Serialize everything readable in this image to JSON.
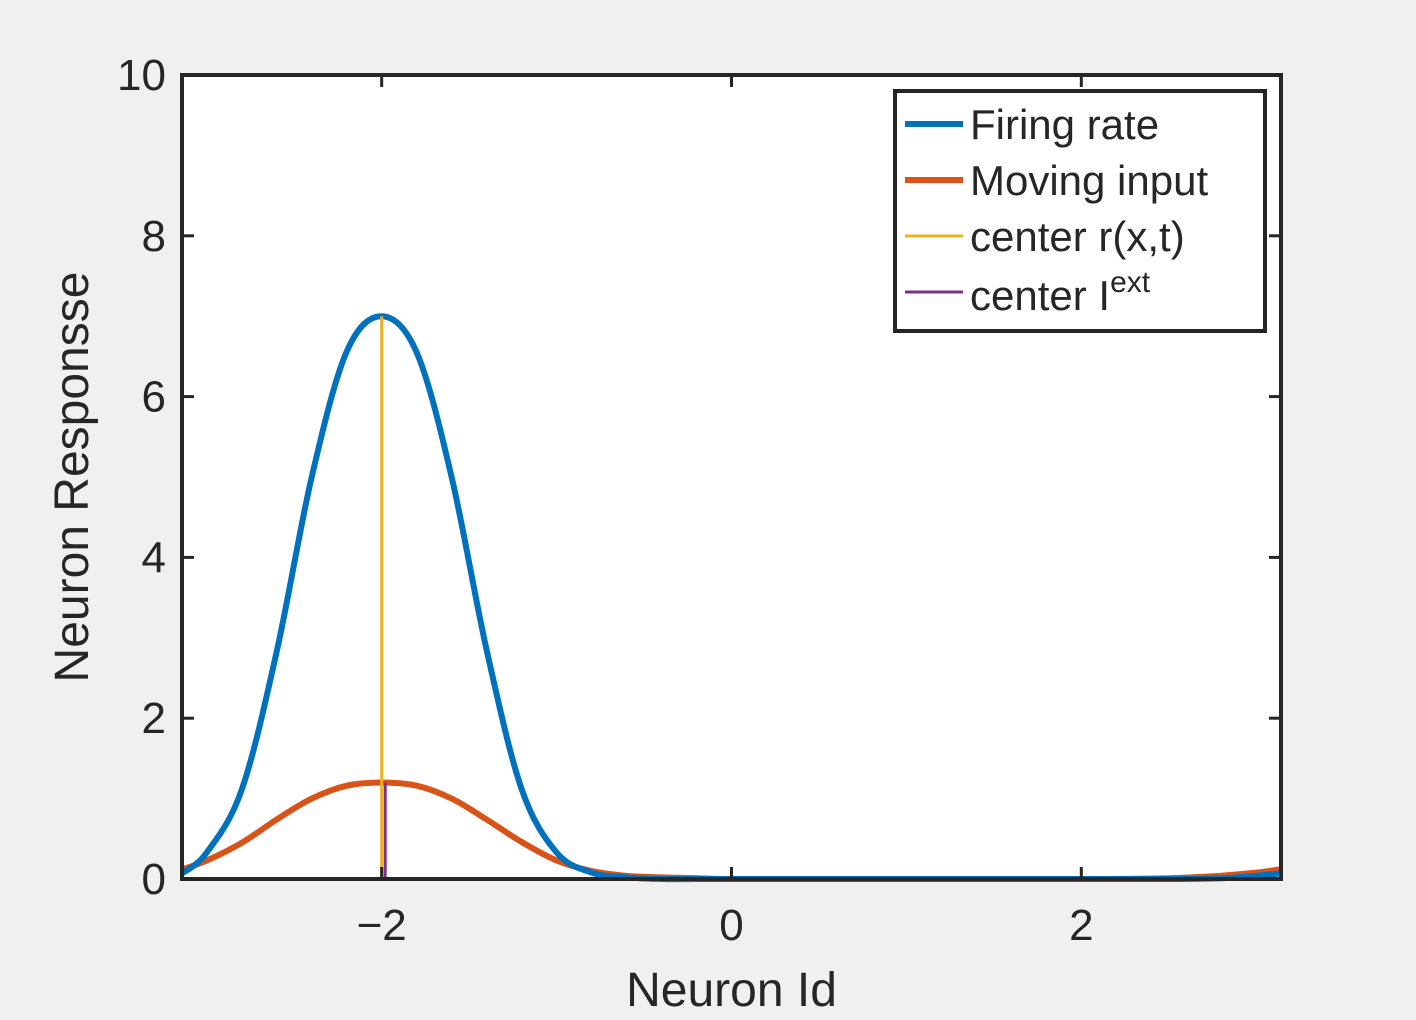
{
  "chart_data": {
    "type": "line",
    "title": "",
    "xlabel": "Neuron Id",
    "ylabel": "Neuron Responsse",
    "xlim": [
      -3.1416,
      3.1416
    ],
    "ylim": [
      0,
      10
    ],
    "xticks": [
      -2,
      0,
      2
    ],
    "xtick_labels": [
      "−2",
      "0",
      "2"
    ],
    "yticks": [
      0,
      2,
      4,
      6,
      8,
      10
    ],
    "ytick_labels": [
      "0",
      "2",
      "4",
      "6",
      "8",
      "10"
    ],
    "grid": false,
    "legend_position": "top-right",
    "series": [
      {
        "name": "Firing rate",
        "color": "#0072bd",
        "x": [
          -3.14,
          -3.0,
          -2.8,
          -2.6,
          -2.4,
          -2.2,
          -2.0,
          -1.8,
          -1.6,
          -1.4,
          -1.2,
          -1.0,
          -0.8,
          -0.6,
          -0.4,
          -0.2,
          0.0,
          0.5,
          1.0,
          1.5,
          2.0,
          2.5,
          2.8,
          3.0,
          3.14
        ],
        "y": [
          0.07,
          0.33,
          1.11,
          2.83,
          5.0,
          6.56,
          7.0,
          6.55,
          5.0,
          2.85,
          1.12,
          0.33,
          0.08,
          0.02,
          0.0,
          0.0,
          0.0,
          0.0,
          0.0,
          0.0,
          0.0,
          0.0,
          0.01,
          0.04,
          0.07
        ]
      },
      {
        "name": "Moving input",
        "color": "#d95319",
        "x": [
          -3.14,
          -3.0,
          -2.8,
          -2.6,
          -2.4,
          -2.2,
          -2.0,
          -1.8,
          -1.6,
          -1.4,
          -1.2,
          -1.0,
          -0.8,
          -0.6,
          -0.4,
          -0.2,
          0.0,
          0.5,
          1.0,
          1.5,
          2.0,
          2.5,
          2.8,
          3.0,
          3.14
        ],
        "y": [
          0.12,
          0.23,
          0.45,
          0.74,
          1.0,
          1.16,
          1.2,
          1.16,
          1.0,
          0.74,
          0.46,
          0.23,
          0.1,
          0.04,
          0.02,
          0.01,
          0.0,
          0.0,
          0.0,
          0.0,
          0.0,
          0.01,
          0.04,
          0.08,
          0.12
        ]
      },
      {
        "name": "center r(x,t)",
        "color": "#edb120",
        "x": [
          -2.0,
          -2.0
        ],
        "y": [
          0,
          7.0
        ]
      },
      {
        "name": "center I",
        "name_superscript": "ext",
        "color": "#7e2f8e",
        "x": [
          -1.98,
          -1.98
        ],
        "y": [
          0,
          1.2
        ]
      }
    ]
  }
}
